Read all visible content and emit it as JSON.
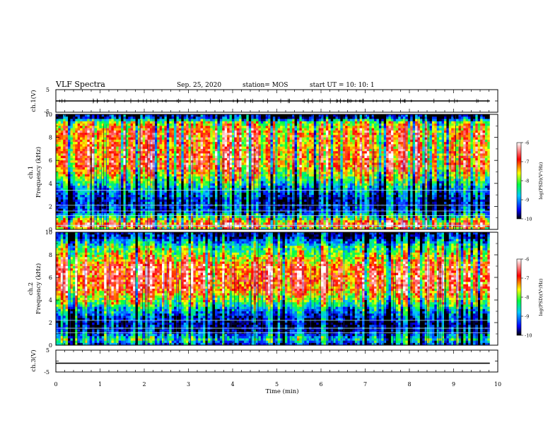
{
  "header": {
    "title": "VLF Spectra",
    "date": "Sep. 25, 2020",
    "station": "station= MOS",
    "start": "start  UT =   10: 10: 1"
  },
  "chart_data": [
    {
      "type": "line",
      "name": "ch1-waveform",
      "ylabel": "ch.1(V)",
      "ylim": [
        -5,
        5
      ],
      "ytick_labels": [
        "5",
        "-5"
      ],
      "xlim": [
        0,
        10
      ],
      "x_end": 9.82,
      "baseline": 0
    },
    {
      "type": "heatmap",
      "name": "ch1-spectrogram",
      "ylabel": "ch.1\nFrequency (kHz)",
      "ylim": [
        0,
        10
      ],
      "ytick_labels": [
        "0",
        "2",
        "4",
        "6",
        "8",
        "10"
      ],
      "xlim": [
        0,
        10
      ],
      "x_end": 9.82,
      "colorbar": {
        "label": "log(PSD)(V²/Hz)",
        "range": [
          -10,
          -6
        ],
        "tick_labels": [
          "-6",
          "-7",
          "-8",
          "-9",
          "-10"
        ]
      },
      "band_profile": [
        [
          0.0,
          -8.0
        ],
        [
          0.3,
          -6.5
        ],
        [
          0.8,
          -7.5
        ],
        [
          1.5,
          -9.2
        ],
        [
          2.5,
          -9.5
        ],
        [
          3.5,
          -8.8
        ],
        [
          4.5,
          -7.8
        ],
        [
          5.5,
          -7.0
        ],
        [
          6.5,
          -7.0
        ],
        [
          7.5,
          -7.2
        ],
        [
          8.5,
          -7.0
        ],
        [
          9.3,
          -7.8
        ],
        [
          9.7,
          -9.5
        ],
        [
          10.0,
          -9.8
        ]
      ],
      "horizontal_lines_khz": [
        0.35,
        1.2,
        1.6,
        2.1,
        3.4
      ]
    },
    {
      "type": "heatmap",
      "name": "ch2-spectrogram",
      "ylabel": "ch.2\nFrequency (kHz)",
      "ylim": [
        0,
        10
      ],
      "ytick_labels": [
        "0",
        "2",
        "4",
        "6",
        "8",
        "10"
      ],
      "xlim": [
        0,
        10
      ],
      "x_end": 9.82,
      "colorbar": {
        "label": "log(PSD)(V²/Hz)",
        "range": [
          -10,
          -6
        ],
        "tick_labels": [
          "-6",
          "-7",
          "-8",
          "-9",
          "-10"
        ]
      },
      "band_profile": [
        [
          0.0,
          -9.3
        ],
        [
          0.5,
          -8.3
        ],
        [
          1.2,
          -9.4
        ],
        [
          2.0,
          -9.6
        ],
        [
          3.0,
          -8.8
        ],
        [
          4.0,
          -7.6
        ],
        [
          5.0,
          -6.8
        ],
        [
          6.0,
          -6.6
        ],
        [
          7.0,
          -6.8
        ],
        [
          8.0,
          -7.6
        ],
        [
          8.8,
          -8.2
        ],
        [
          9.5,
          -9.3
        ],
        [
          10.0,
          -9.6
        ]
      ],
      "horizontal_lines_khz": [
        1.1,
        1.5,
        2.2
      ]
    },
    {
      "type": "line",
      "name": "ch3-waveform",
      "ylabel": "ch.3(V)",
      "ylim": [
        -5,
        5
      ],
      "ytick_labels": [
        "5",
        "-5"
      ],
      "xlim": [
        0,
        10
      ],
      "x_end": 9.82,
      "baseline": -1.0
    }
  ],
  "x_axis": {
    "label": "Time (min)",
    "tick_labels": [
      "0",
      "1",
      "2",
      "3",
      "4",
      "5",
      "6",
      "7",
      "8",
      "9",
      "10"
    ],
    "range": [
      0,
      10
    ]
  }
}
